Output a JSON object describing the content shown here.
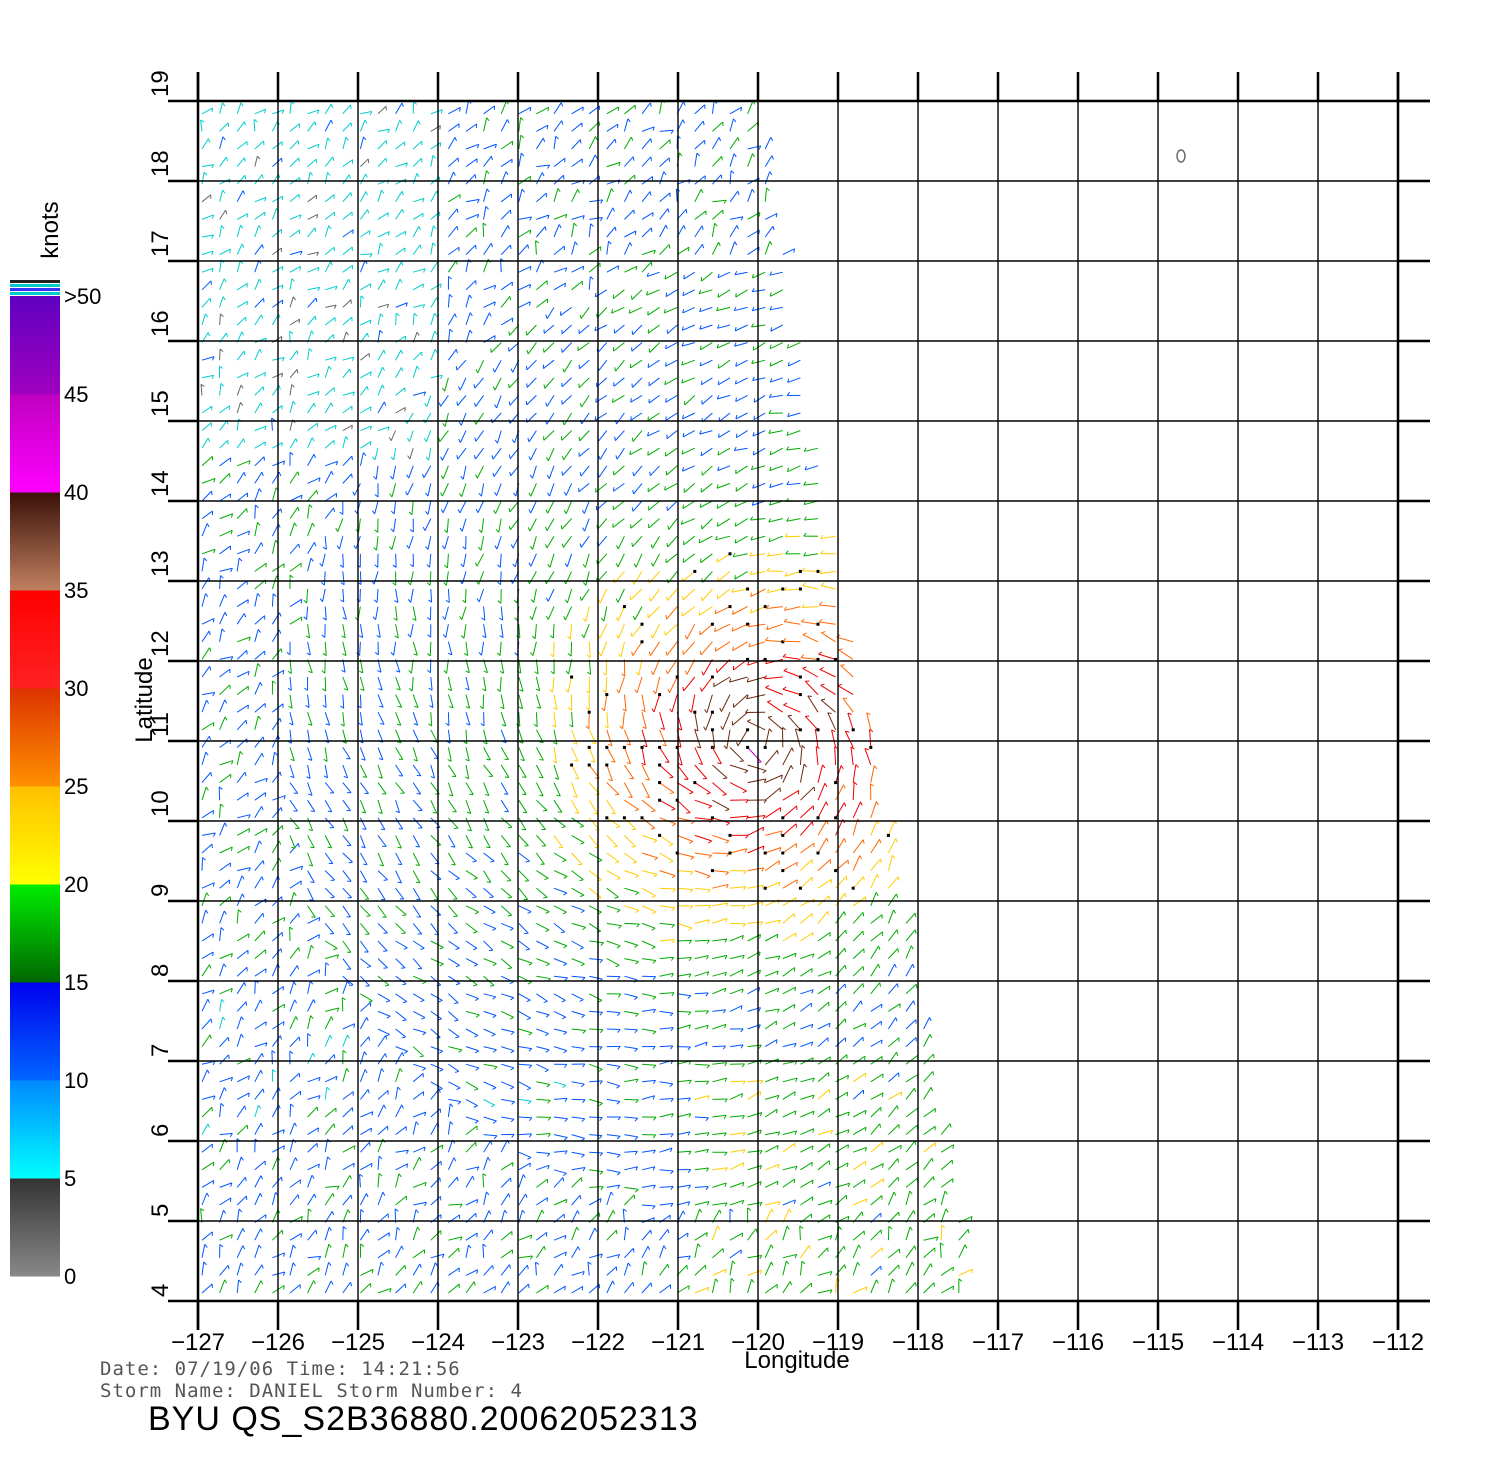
{
  "chart_data": {
    "type": "wind-barb-map",
    "xlabel": "Longitude",
    "ylabel": "Latitude",
    "xlim": [
      -127,
      -112
    ],
    "ylim": [
      4,
      19
    ],
    "x_ticks": [
      -127,
      -126,
      -125,
      -124,
      -123,
      -122,
      -121,
      -120,
      -119,
      -118,
      -117,
      -116,
      -115,
      -114,
      -113,
      -112
    ],
    "y_ticks": [
      4,
      5,
      6,
      7,
      8,
      9,
      10,
      11,
      12,
      13,
      14,
      15,
      16,
      17,
      18,
      19
    ],
    "x_tick_labels": [
      "-127",
      "-126",
      "-125",
      "-124",
      "-123",
      "-122",
      "-121",
      "-120",
      "-119",
      "-118",
      "-117",
      "-116",
      "-115",
      "-114",
      "-113",
      "-112"
    ],
    "y_tick_labels": [
      "4",
      "5",
      "6",
      "7",
      "8",
      "9",
      "10",
      "11",
      "12",
      "13",
      "14",
      "15",
      "16",
      "17",
      "18",
      "19"
    ],
    "grid": true,
    "swath": {
      "west_lon": -127,
      "top_lat": 19,
      "top_east_lon": -120,
      "bottom_lat": 4,
      "bottom_east_lon": -117.3
    },
    "storm_center": {
      "lon": -120,
      "lat": 11
    },
    "colorbar": {
      "unit": "knots",
      "labels": [
        "0",
        "5",
        "10",
        "15",
        "20",
        "25",
        "30",
        "35",
        "40",
        "45",
        ">50"
      ],
      "bands": [
        {
          "from": 0,
          "to": 5,
          "colors": [
            "#888888",
            "#333333"
          ]
        },
        {
          "from": 5,
          "to": 10,
          "colors": [
            "#00ffff",
            "#0088ff"
          ]
        },
        {
          "from": 10,
          "to": 15,
          "colors": [
            "#0066ff",
            "#0000ee"
          ]
        },
        {
          "from": 15,
          "to": 20,
          "colors": [
            "#006600",
            "#00ee00"
          ]
        },
        {
          "from": 20,
          "to": 25,
          "colors": [
            "#ffff00",
            "#ffc000"
          ]
        },
        {
          "from": 25,
          "to": 30,
          "colors": [
            "#ff9000",
            "#dd3300"
          ]
        },
        {
          "from": 30,
          "to": 35,
          "colors": [
            "#ff2222",
            "#ff0000"
          ]
        },
        {
          "from": 35,
          "to": 40,
          "colors": [
            "#c08060",
            "#3a1008"
          ]
        },
        {
          "from": 40,
          "to": 45,
          "colors": [
            "#ff00ff",
            "#c000c0"
          ]
        },
        {
          "from": 45,
          "to": 50,
          "colors": [
            "#a000c0",
            "#6000c0"
          ]
        }
      ]
    },
    "speed_colors": [
      "#666666",
      "#00cccc",
      "#0055ff",
      "#00aa00",
      "#ffcc00",
      "#ff6600",
      "#ee0000",
      "#6b2a10",
      "#cc00cc",
      "#7700cc"
    ]
  },
  "footer": {
    "date_line": "Date: 07/19/06   Time: 14:21:56",
    "storm_line": "Storm  Name: DANIEL   Storm  Number: 4",
    "file_id": "BYU  QS_S2B36880.20062052313"
  }
}
